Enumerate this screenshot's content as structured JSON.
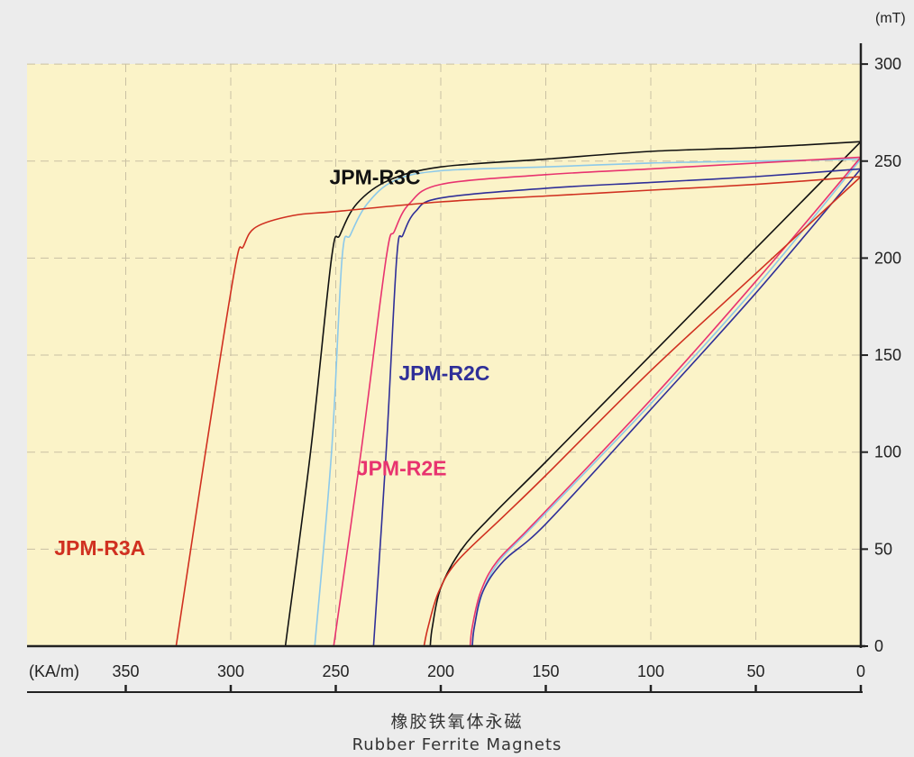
{
  "colors": {
    "page_background": "#ececec",
    "plot_background": "#fbf3c8",
    "grid": "#c9c0a3",
    "axis": "#222222"
  },
  "chart_data": {
    "type": "line",
    "title": "",
    "caption_cn": "橡胶铁氧体永磁",
    "caption_en": "Rubber Ferrite Magnets",
    "xunit": "(KA/m)",
    "yunit": "(mT)",
    "xlim": [
      0,
      400
    ],
    "ylim": [
      0,
      300
    ],
    "x_reversed": true,
    "xticks": [
      350,
      300,
      250,
      200,
      150,
      100,
      50,
      0
    ],
    "yticks": [
      0,
      50,
      100,
      150,
      200,
      250,
      300
    ],
    "grid": true,
    "series": [
      {
        "name": "JPM-R3C",
        "label_color": "#111111",
        "line_color": "#111111",
        "curve": "J",
        "points": [
          [
            274,
            0
          ],
          [
            262,
            100
          ],
          [
            252,
            200
          ],
          [
            248,
            212
          ],
          [
            240,
            228
          ],
          [
            225,
            240
          ],
          [
            200,
            247
          ],
          [
            150,
            251
          ],
          [
            100,
            255
          ],
          [
            50,
            257
          ],
          [
            0,
            260
          ]
        ]
      },
      {
        "name": "JPM-R3C",
        "label_color": "#111111",
        "line_color": "#111111",
        "curve": "B",
        "points": [
          [
            205,
            0
          ],
          [
            204,
            10
          ],
          [
            200,
            30
          ],
          [
            190,
            50
          ],
          [
            175,
            68
          ],
          [
            150,
            95
          ],
          [
            100,
            150
          ],
          [
            50,
            205
          ],
          [
            0,
            260
          ]
        ]
      },
      {
        "name": "",
        "line_color": "#8cc9ea",
        "curve": "J",
        "points": [
          [
            260,
            0
          ],
          [
            252,
            100
          ],
          [
            247,
            200
          ],
          [
            243,
            212
          ],
          [
            235,
            228
          ],
          [
            222,
            240
          ],
          [
            200,
            245
          ],
          [
            150,
            247
          ],
          [
            100,
            249
          ],
          [
            50,
            250
          ],
          [
            0,
            251
          ]
        ]
      },
      {
        "name": "",
        "line_color": "#8cc9ea",
        "curve": "B",
        "points": [
          [
            185,
            0
          ],
          [
            184,
            10
          ],
          [
            180,
            28
          ],
          [
            172,
            44
          ],
          [
            155,
            63
          ],
          [
            100,
            125
          ],
          [
            50,
            185
          ],
          [
            0,
            251
          ]
        ]
      },
      {
        "name": "JPM-R2E",
        "label_color": "#e8336f",
        "line_color": "#e8336f",
        "curve": "J",
        "points": [
          [
            251,
            0
          ],
          [
            238,
            100
          ],
          [
            226,
            200
          ],
          [
            222,
            214
          ],
          [
            215,
            228
          ],
          [
            200,
            238
          ],
          [
            150,
            243
          ],
          [
            100,
            246
          ],
          [
            50,
            249
          ],
          [
            0,
            252
          ]
        ]
      },
      {
        "name": "JPM-R2E",
        "label_color": "#e8336f",
        "line_color": "#e8336f",
        "curve": "B",
        "points": [
          [
            186,
            0
          ],
          [
            185,
            10
          ],
          [
            181,
            28
          ],
          [
            173,
            44
          ],
          [
            155,
            64
          ],
          [
            100,
            127
          ],
          [
            50,
            188
          ],
          [
            0,
            252
          ]
        ]
      },
      {
        "name": "JPM-R2C",
        "label_color": "#2f2f98",
        "line_color": "#2f2f98",
        "curve": "J",
        "points": [
          [
            232,
            0
          ],
          [
            226,
            100
          ],
          [
            221,
            200
          ],
          [
            218,
            212
          ],
          [
            212,
            224
          ],
          [
            200,
            231
          ],
          [
            150,
            236
          ],
          [
            100,
            239
          ],
          [
            50,
            242
          ],
          [
            0,
            246
          ]
        ]
      },
      {
        "name": "JPM-R2C",
        "label_color": "#2f2f98",
        "line_color": "#2f2f98",
        "curve": "B",
        "points": [
          [
            185,
            0
          ],
          [
            184,
            10
          ],
          [
            180,
            28
          ],
          [
            170,
            44
          ],
          [
            150,
            63
          ],
          [
            100,
            122
          ],
          [
            50,
            182
          ],
          [
            0,
            246
          ]
        ]
      },
      {
        "name": "JPM-R3A",
        "label_color": "#d03020",
        "line_color": "#d03020",
        "curve": "J",
        "points": [
          [
            326,
            0
          ],
          [
            312,
            100
          ],
          [
            298,
            195
          ],
          [
            294,
            206
          ],
          [
            288,
            216
          ],
          [
            270,
            222
          ],
          [
            250,
            224
          ],
          [
            200,
            229
          ],
          [
            150,
            232
          ],
          [
            100,
            235
          ],
          [
            50,
            238
          ],
          [
            0,
            242
          ]
        ]
      },
      {
        "name": "JPM-R3A",
        "label_color": "#d03020",
        "line_color": "#d03020",
        "curve": "B",
        "points": [
          [
            208,
            0
          ],
          [
            206,
            10
          ],
          [
            201,
            28
          ],
          [
            192,
            44
          ],
          [
            170,
            67
          ],
          [
            150,
            88
          ],
          [
            100,
            142
          ],
          [
            50,
            192
          ],
          [
            0,
            242
          ]
        ]
      }
    ],
    "annotations": [
      {
        "text": "JPM-R3C",
        "color": "#111111",
        "x": 253,
        "y": 238
      },
      {
        "text": "JPM-R2C",
        "color": "#2f2f98",
        "x": 220,
        "y": 137
      },
      {
        "text": "JPM-R2E",
        "color": "#e8336f",
        "x": 240,
        "y": 88
      },
      {
        "text": "JPM-R3A",
        "color": "#d03020",
        "x": 384,
        "y": 47
      }
    ]
  }
}
